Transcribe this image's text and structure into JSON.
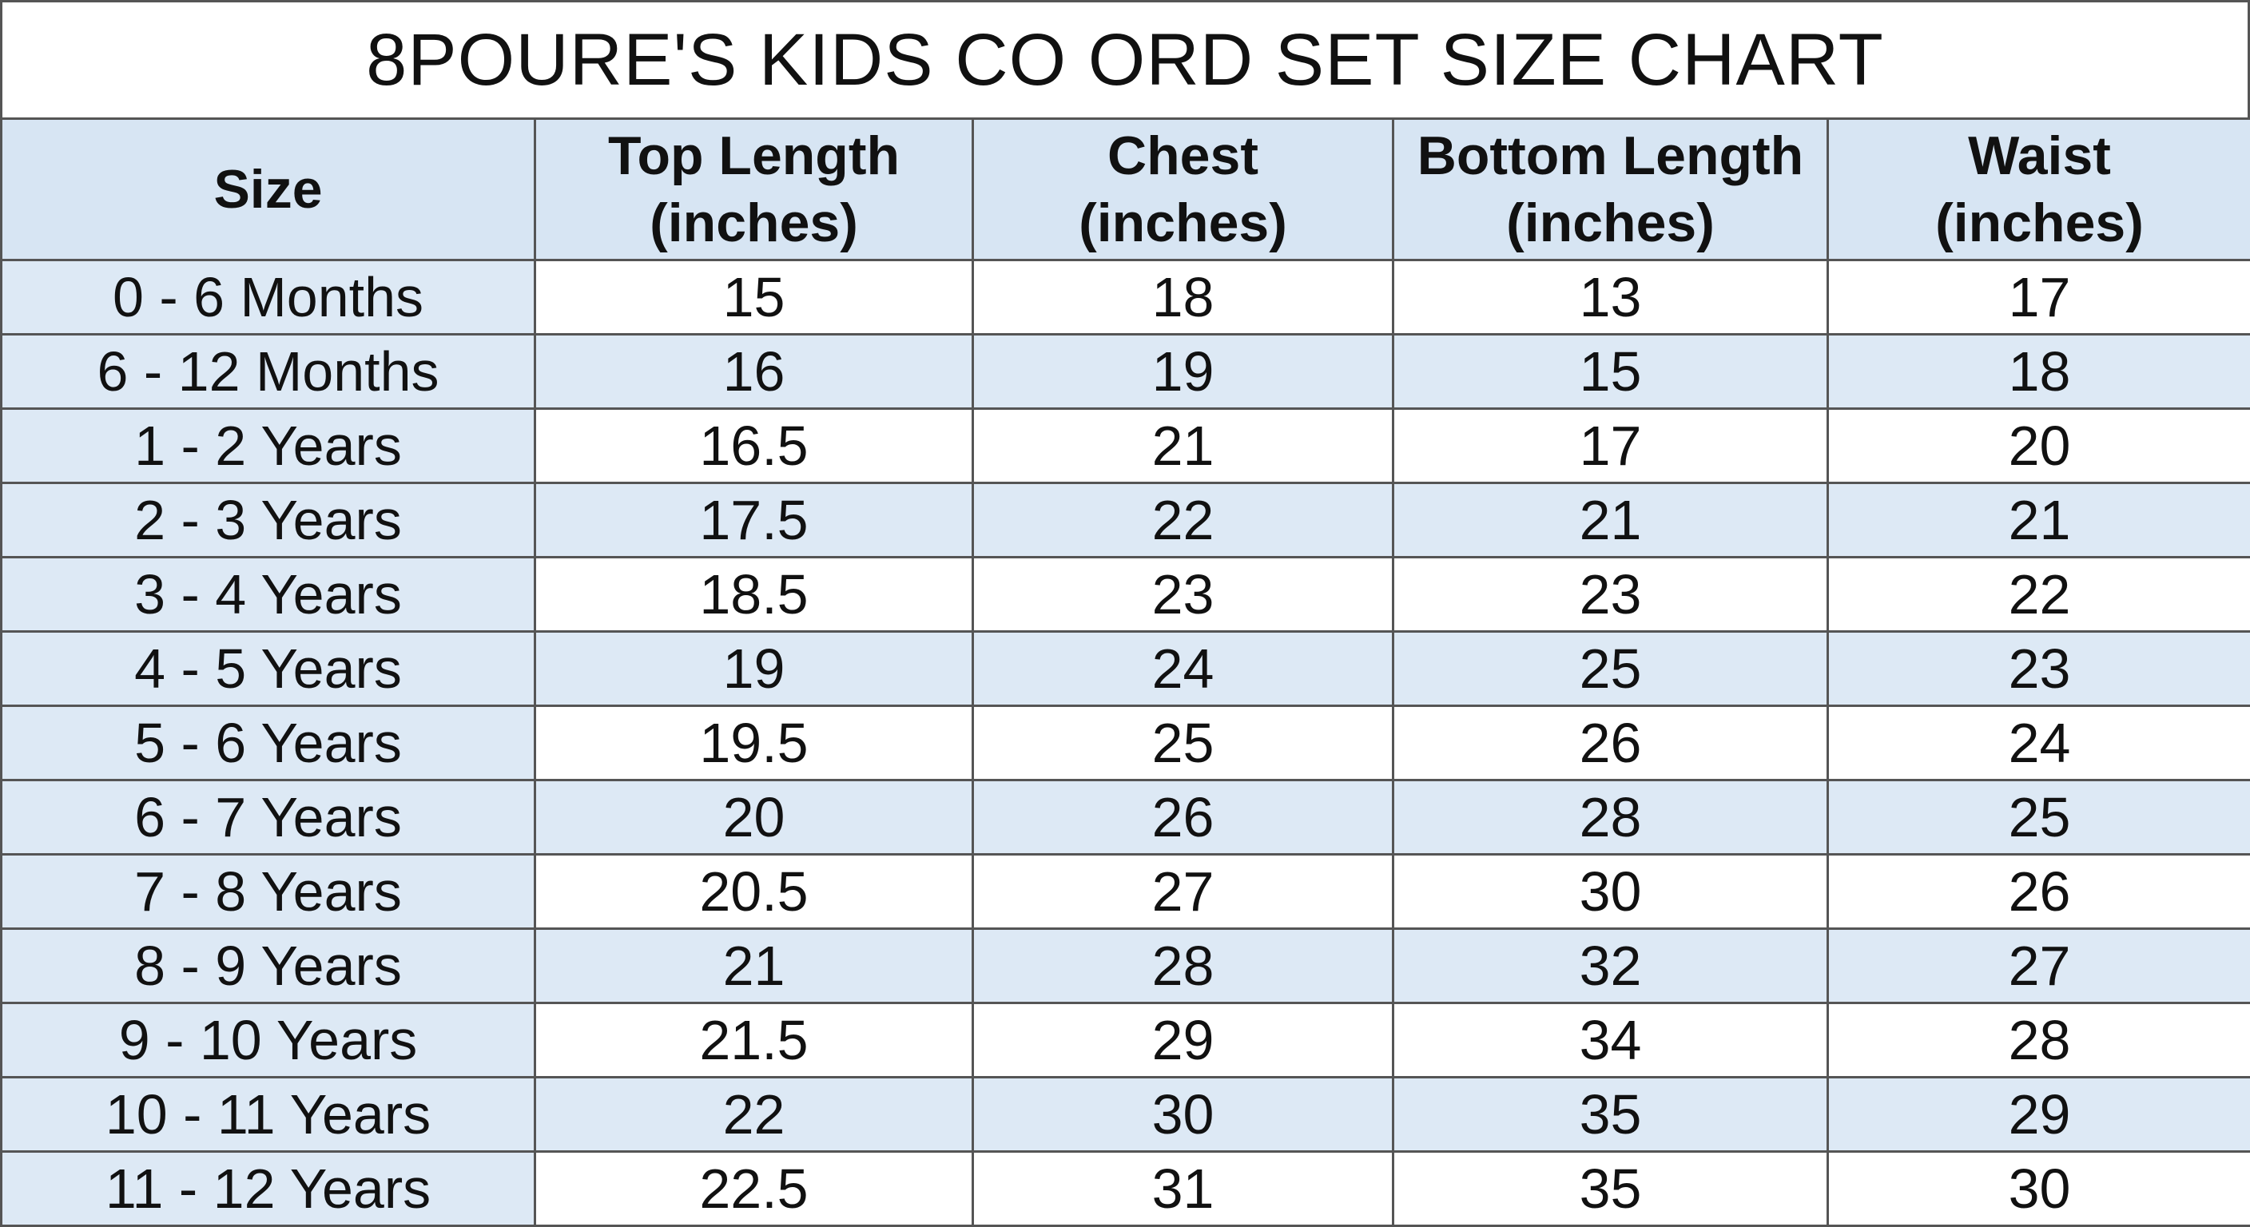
{
  "title": "8POURE'S KIDS CO ORD SET SIZE CHART",
  "table": {
    "headers": [
      [
        "Size"
      ],
      [
        "Top Length",
        "(inches)"
      ],
      [
        "Chest",
        "(inches)"
      ],
      [
        "Bottom Length",
        "(inches)"
      ],
      [
        "Waist",
        "(inches)"
      ]
    ],
    "rows": [
      [
        "0 - 6 Months",
        15,
        18,
        13,
        17
      ],
      [
        "6 - 12 Months",
        16,
        19,
        15,
        18
      ],
      [
        "1 - 2 Years",
        16.5,
        21,
        17,
        20
      ],
      [
        "2 - 3 Years",
        17.5,
        22,
        21,
        21
      ],
      [
        "3 - 4 Years",
        18.5,
        23,
        23,
        22
      ],
      [
        "4 - 5 Years",
        19,
        24,
        25,
        23
      ],
      [
        "5 - 6 Years",
        19.5,
        25,
        26,
        24
      ],
      [
        "6 - 7 Years",
        20,
        26,
        28,
        25
      ],
      [
        "7 - 8 Years",
        20.5,
        27,
        30,
        26
      ],
      [
        "8 - 9 Years",
        21,
        28,
        32,
        27
      ],
      [
        "9 - 10 Years",
        21.5,
        29,
        34,
        28
      ],
      [
        "10 - 11 Years",
        22,
        30,
        35,
        29
      ],
      [
        "11 - 12 Years",
        22.5,
        31,
        35,
        30
      ]
    ]
  }
}
